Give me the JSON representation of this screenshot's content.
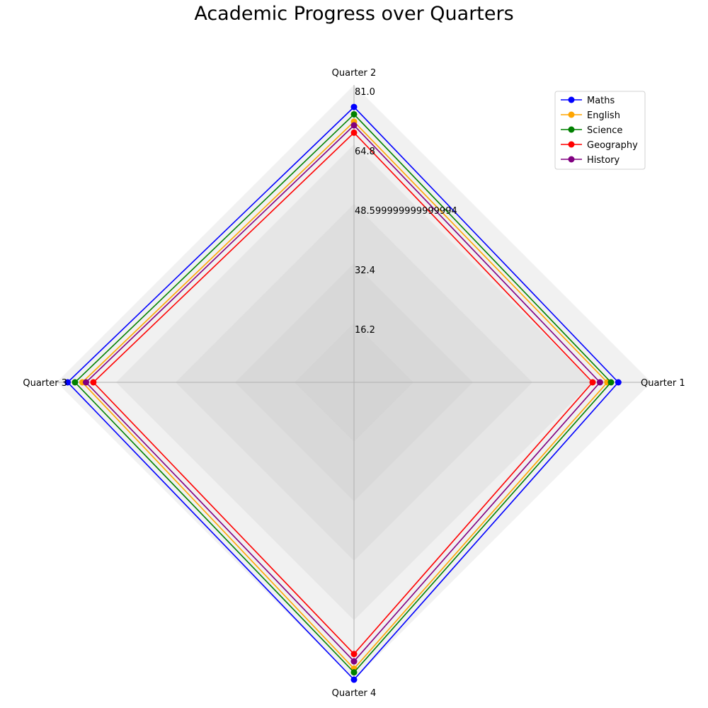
{
  "chart_data": {
    "type": "radar",
    "title": "Academic Progress over Quarters",
    "axes": [
      "Quarter 1",
      "Quarter 2",
      "Quarter 3",
      "Quarter 4"
    ],
    "rmax": 81.0,
    "ticks": [
      "16.2",
      "32.4",
      "48.599999999999994",
      "64.8",
      "81.0"
    ],
    "tick_values": [
      16.2,
      32.4,
      48.6,
      64.8,
      81.0
    ],
    "legend_position": "top-right",
    "series": [
      {
        "name": "Maths",
        "color": "#0000ff",
        "values": [
          72,
          75,
          78,
          81
        ]
      },
      {
        "name": "English",
        "color": "#ffa500",
        "values": [
          69,
          71,
          74,
          78
        ]
      },
      {
        "name": "Science",
        "color": "#008000",
        "values": [
          70,
          73,
          76,
          79
        ]
      },
      {
        "name": "Geography",
        "color": "#ff0000",
        "values": [
          65,
          68,
          71,
          74
        ]
      },
      {
        "name": "History",
        "color": "#800080",
        "values": [
          67,
          70,
          73,
          76
        ]
      }
    ]
  }
}
